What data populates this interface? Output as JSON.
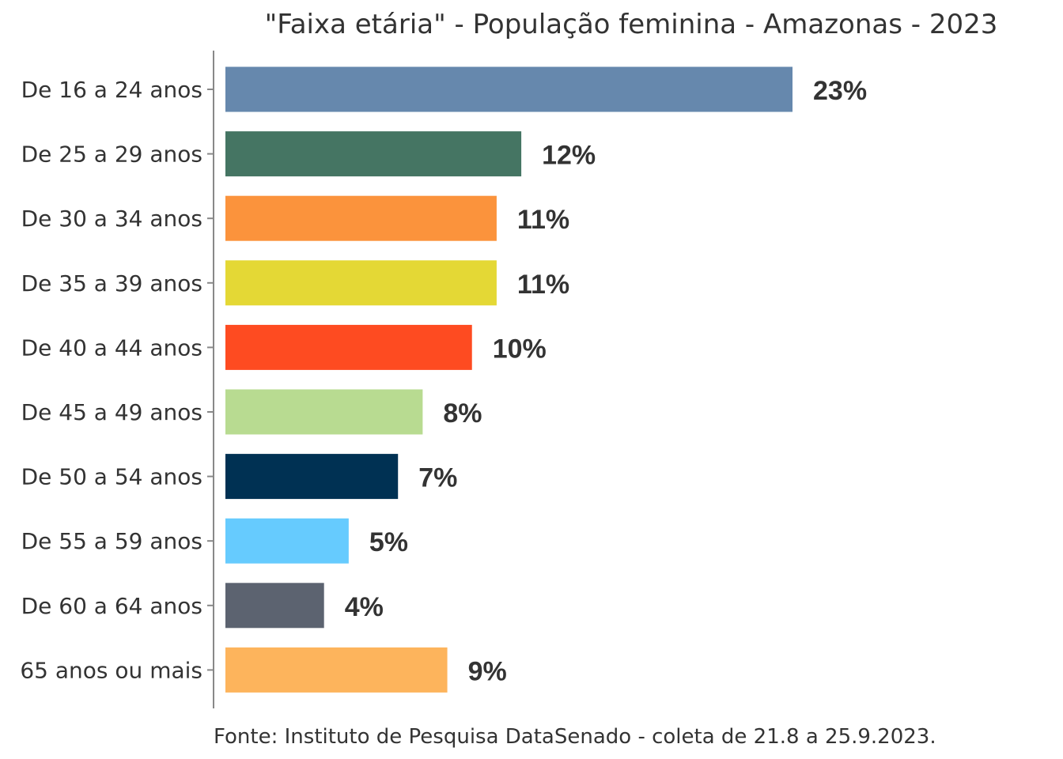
{
  "chart_data": {
    "type": "bar",
    "orientation": "horizontal",
    "title": "\"Faixa etária\" - População feminina - Amazonas - 2023",
    "caption": "Fonte: Instituto de Pesquisa DataSenado - coleta de 21.8 a 25.9.2023.",
    "categories": [
      "De 16 a 24 anos",
      "De 25 a 29 anos",
      "De 30 a 34 anos",
      "De 35 a 39 anos",
      "De 40 a 44 anos",
      "De 45 a 49 anos",
      "De 50 a 54 anos",
      "De 55 a 59 anos",
      "De 60 a 64 anos",
      "65 anos ou mais"
    ],
    "values": [
      23,
      12,
      11,
      11,
      10,
      8,
      7,
      5,
      4,
      9
    ],
    "value_labels": [
      "23%",
      "12%",
      "11%",
      "11%",
      "10%",
      "8%",
      "7%",
      "5%",
      "4%",
      "9%"
    ],
    "colors": [
      "#6688AD",
      "#457563",
      "#FB933C",
      "#E4D835",
      "#FE4B21",
      "#B8DB91",
      "#003153",
      "#66CBFE",
      "#5C6370",
      "#FDB45C"
    ],
    "xlim": [
      0,
      23
    ],
    "grid": false,
    "legend": "none"
  }
}
